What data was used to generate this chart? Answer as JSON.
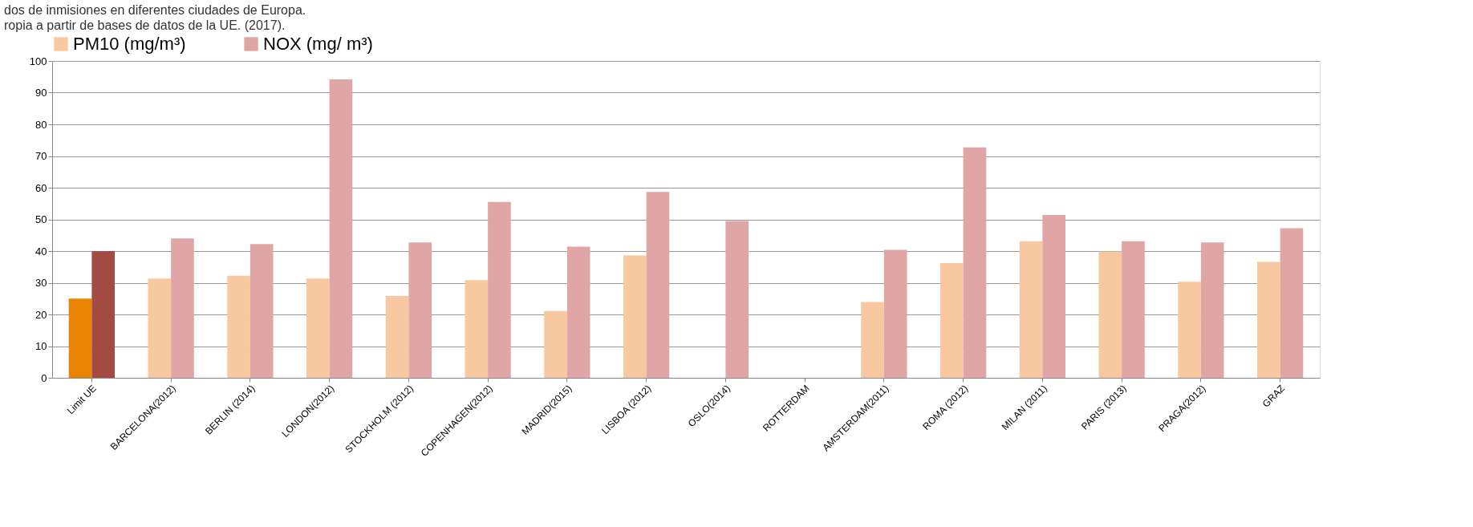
{
  "chart_data": {
    "type": "bar",
    "title": "dos de inmisiones en diferentes ciudades de Europa.",
    "subtitle": "ropia a partir de bases de datos de la UE. (2017).",
    "categories": [
      "Limit UE",
      "BARCELONA(2012)",
      "BERLIN (2014)",
      "LONDON(2012)",
      "STOCKHOLM (2012)",
      "COPENHAGEN(2012)",
      "MADRID(2015)",
      "LISBOA (2012)",
      "OSLO(2014)",
      "ROTTERDAM",
      "AMSTERDAM(2011)",
      "ROMA (2012)",
      "MILAN (2011)",
      "PARIS (2013)",
      "PRAGA(2012)",
      "GRAZ"
    ],
    "series": [
      {
        "name": "PM10 (mg/m³)",
        "color": "#f8c9a0",
        "colors": [
          "#e98300",
          "#f8c9a0",
          "#f8c9a0",
          "#f8c9a0",
          "#f8c9a0",
          "#f8c9a0",
          "#f8c9a0",
          "#f8c9a0",
          "#f8c9a0",
          "#f8c9a0",
          "#f8c9a0",
          "#f8c9a0",
          "#f8c9a0",
          "#f8c9a0",
          "#f8c9a0",
          "#f8c9a0"
        ],
        "values": [
          25,
          31.3,
          32.2,
          31.3,
          25.8,
          30.8,
          21.1,
          38.6,
          null,
          null,
          23.9,
          36.2,
          43.1,
          39.9,
          30.3,
          36.6
        ]
      },
      {
        "name": "NOX (mg/ m³)",
        "color": "#e0a6a5",
        "colors": [
          "#a34a42",
          "#e0a6a5",
          "#e0a6a5",
          "#e0a6a5",
          "#e0a6a5",
          "#e0a6a5",
          "#e0a6a5",
          "#e0a6a5",
          "#e0a6a5",
          "#e0a6a5",
          "#e0a6a5",
          "#e0a6a5",
          "#e0a6a5",
          "#e0a6a5",
          "#e0a6a5",
          "#e0a6a5"
        ],
        "values": [
          40,
          44,
          42.2,
          94.2,
          42.7,
          55.5,
          41.4,
          58.7,
          49.5,
          null,
          40.4,
          72.7,
          51.4,
          43.1,
          42.7,
          47.2
        ]
      }
    ],
    "ylim": [
      0,
      100
    ],
    "yticks": [
      0,
      10,
      20,
      30,
      40,
      50,
      60,
      70,
      80,
      90,
      100
    ],
    "grid": "y",
    "legend": "top"
  }
}
